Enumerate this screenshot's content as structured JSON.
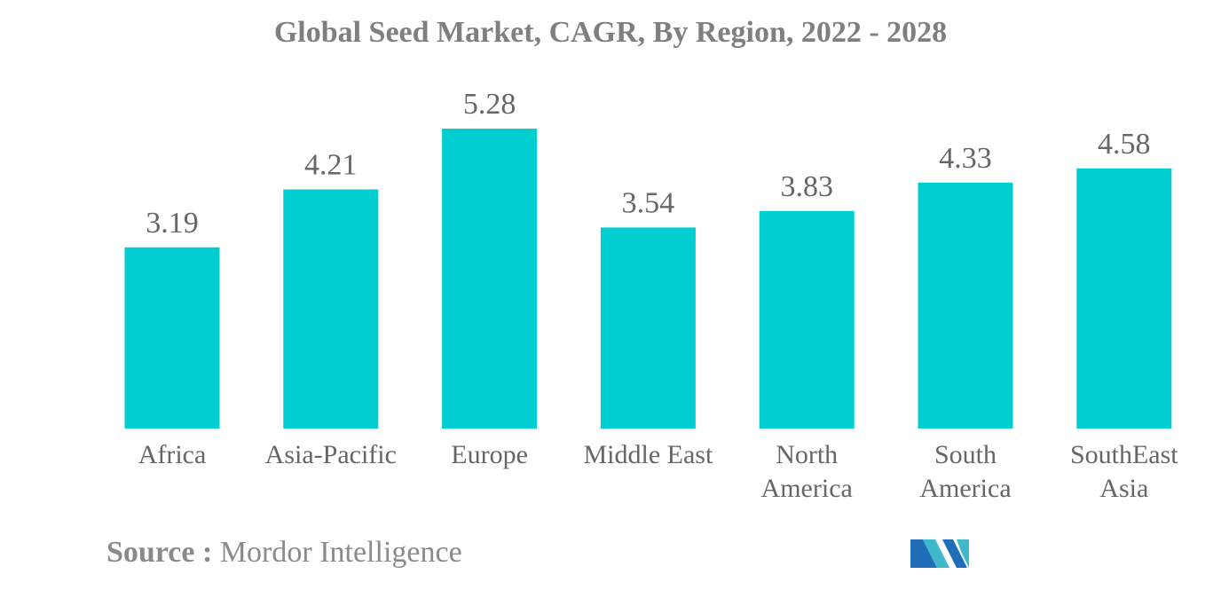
{
  "chart_data": {
    "type": "bar",
    "title": "Global Seed Market, CAGR, By Region, 2022 - 2028",
    "categories": [
      "Africa",
      "Asia-Pacific",
      "Europe",
      "Middle East",
      "North America",
      "South America",
      "SouthEast Asia"
    ],
    "category_lines": [
      [
        "Africa"
      ],
      [
        "Asia-Pacific"
      ],
      [
        "Europe"
      ],
      [
        "Middle East"
      ],
      [
        "North",
        "America"
      ],
      [
        "South",
        "America"
      ],
      [
        "SouthEast",
        "Asia"
      ]
    ],
    "values": [
      3.19,
      4.21,
      5.28,
      3.54,
      3.83,
      4.33,
      4.58
    ],
    "value_labels": [
      "3.19",
      "4.21",
      "5.28",
      "3.54",
      "3.83",
      "4.33",
      "4.58"
    ],
    "xlabel": "",
    "ylabel": "",
    "ylim": [
      0,
      5.28
    ],
    "grid": false,
    "legend": "none",
    "bar_color": "#00ced1",
    "label_color": "#666666"
  },
  "source": {
    "label": "Source :",
    "text": "Mordor Intelligence"
  },
  "logo": {
    "icon": "mordor-intelligence-logo",
    "colors": [
      "#1f6db6",
      "#3fb8c9"
    ]
  }
}
